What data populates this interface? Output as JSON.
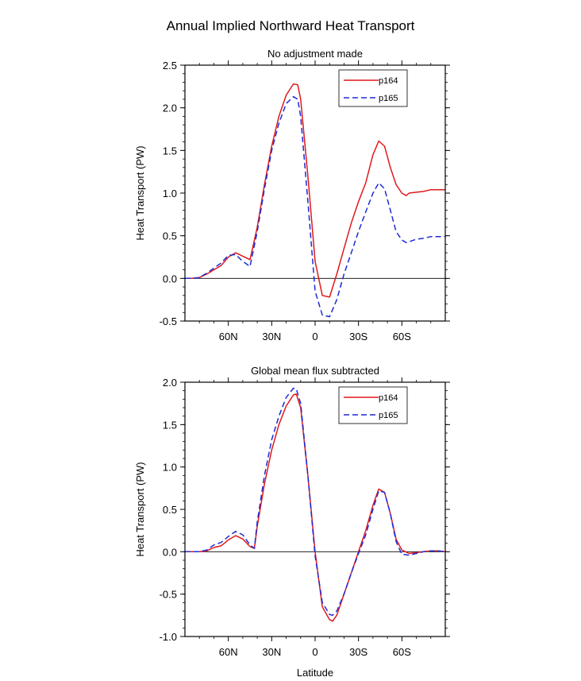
{
  "figure_title": "Annual Implied Northward Heat Transport",
  "chart_data": [
    {
      "type": "line",
      "title": "No adjustment made",
      "xlabel": "",
      "ylabel": "Heat Transport (PW)",
      "xlim": [
        90,
        -90
      ],
      "ylim": [
        -0.5,
        2.5
      ],
      "yticks": [
        -0.5,
        0.0,
        0.5,
        1.0,
        1.5,
        2.0,
        2.5
      ],
      "ytick_labels": [
        "-0.5",
        "0.0",
        "0.5",
        "1.0",
        "1.5",
        "2.0",
        "2.5"
      ],
      "xticks": [
        60,
        30,
        0,
        -30,
        -60
      ],
      "xtick_labels": [
        "60N",
        "30N",
        "0",
        "30S",
        "60S"
      ],
      "legend": "top-right",
      "series": [
        {
          "name": "p164",
          "color": "#e0191c",
          "dash": "solid",
          "x": [
            90,
            85,
            80,
            75,
            70,
            65,
            60,
            55,
            50,
            45,
            40,
            35,
            30,
            25,
            20,
            15,
            12,
            10,
            5,
            0,
            -5,
            -10,
            -15,
            -20,
            -25,
            -30,
            -35,
            -40,
            -44,
            -48,
            -52,
            -56,
            -60,
            -63,
            -65,
            -70,
            -75,
            -80,
            -85,
            -90
          ],
          "y": [
            0.0,
            0.0,
            0.01,
            0.05,
            0.1,
            0.15,
            0.25,
            0.3,
            0.26,
            0.22,
            0.6,
            1.1,
            1.55,
            1.9,
            2.15,
            2.28,
            2.27,
            2.1,
            1.2,
            0.2,
            -0.2,
            -0.22,
            0.05,
            0.35,
            0.65,
            0.9,
            1.12,
            1.45,
            1.61,
            1.55,
            1.3,
            1.1,
            1.0,
            0.97,
            1.0,
            1.01,
            1.02,
            1.04,
            1.04,
            1.04
          ]
        },
        {
          "name": "p165",
          "color": "#1d2bd4",
          "dash": "dashed",
          "x": [
            90,
            85,
            80,
            75,
            70,
            65,
            60,
            55,
            50,
            45,
            40,
            35,
            30,
            25,
            20,
            15,
            12,
            10,
            5,
            0,
            -5,
            -10,
            -15,
            -20,
            -25,
            -30,
            -35,
            -40,
            -44,
            -48,
            -52,
            -56,
            -60,
            -63,
            -65,
            -70,
            -75,
            -80,
            -85,
            -90
          ],
          "y": [
            0.0,
            0.0,
            0.01,
            0.06,
            0.12,
            0.18,
            0.27,
            0.28,
            0.2,
            0.14,
            0.55,
            1.05,
            1.5,
            1.82,
            2.05,
            2.13,
            2.1,
            1.9,
            0.9,
            -0.15,
            -0.43,
            -0.45,
            -0.25,
            0.05,
            0.3,
            0.55,
            0.78,
            1.0,
            1.12,
            1.05,
            0.8,
            0.55,
            0.45,
            0.42,
            0.43,
            0.46,
            0.47,
            0.49,
            0.49,
            0.49
          ]
        }
      ]
    },
    {
      "type": "line",
      "title": "Global mean flux subtracted",
      "xlabel": "Latitude",
      "ylabel": "Heat Transport (PW)",
      "xlim": [
        90,
        -90
      ],
      "ylim": [
        -1.0,
        2.0
      ],
      "yticks": [
        -1.0,
        -0.5,
        0.0,
        0.5,
        1.0,
        1.5,
        2.0
      ],
      "ytick_labels": [
        "-1.0",
        "-0.5",
        "0.0",
        "0.5",
        "1.0",
        "1.5",
        "2.0"
      ],
      "xticks": [
        60,
        30,
        0,
        -30,
        -60
      ],
      "xtick_labels": [
        "60N",
        "30N",
        "0",
        "30S",
        "60S"
      ],
      "legend": "top-right",
      "series": [
        {
          "name": "p164",
          "color": "#e0191c",
          "dash": "solid",
          "x": [
            90,
            85,
            80,
            75,
            70,
            65,
            60,
            55,
            50,
            45,
            42,
            40,
            35,
            30,
            25,
            20,
            15,
            13,
            10,
            5,
            0,
            -5,
            -10,
            -12,
            -15,
            -20,
            -25,
            -30,
            -35,
            -40,
            -44,
            -48,
            -52,
            -56,
            -60,
            -65,
            -70,
            -75,
            -80,
            -85,
            -90
          ],
          "y": [
            0.0,
            0.0,
            0.0,
            0.01,
            0.05,
            0.07,
            0.14,
            0.19,
            0.15,
            0.06,
            0.04,
            0.3,
            0.8,
            1.2,
            1.5,
            1.72,
            1.85,
            1.86,
            1.7,
            0.9,
            0.0,
            -0.65,
            -0.8,
            -0.82,
            -0.75,
            -0.5,
            -0.25,
            0.0,
            0.25,
            0.55,
            0.74,
            0.7,
            0.45,
            0.15,
            0.02,
            -0.02,
            -0.01,
            0.0,
            0.01,
            0.01,
            0.0
          ]
        },
        {
          "name": "p165",
          "color": "#1d2bd4",
          "dash": "dashed",
          "x": [
            90,
            85,
            80,
            75,
            70,
            65,
            60,
            55,
            50,
            45,
            42,
            40,
            35,
            30,
            25,
            20,
            15,
            13,
            10,
            5,
            0,
            -5,
            -10,
            -12,
            -15,
            -20,
            -25,
            -30,
            -35,
            -40,
            -44,
            -48,
            -52,
            -56,
            -60,
            -65,
            -70,
            -75,
            -80,
            -85,
            -90
          ],
          "y": [
            0.0,
            0.0,
            0.0,
            0.02,
            0.08,
            0.11,
            0.18,
            0.24,
            0.2,
            0.08,
            0.04,
            0.35,
            0.9,
            1.32,
            1.6,
            1.82,
            1.93,
            1.92,
            1.75,
            0.9,
            -0.05,
            -0.6,
            -0.74,
            -0.75,
            -0.7,
            -0.5,
            -0.25,
            -0.02,
            0.2,
            0.5,
            0.72,
            0.7,
            0.45,
            0.12,
            -0.03,
            -0.04,
            -0.02,
            0.0,
            0.01,
            0.01,
            0.0
          ]
        }
      ]
    }
  ]
}
